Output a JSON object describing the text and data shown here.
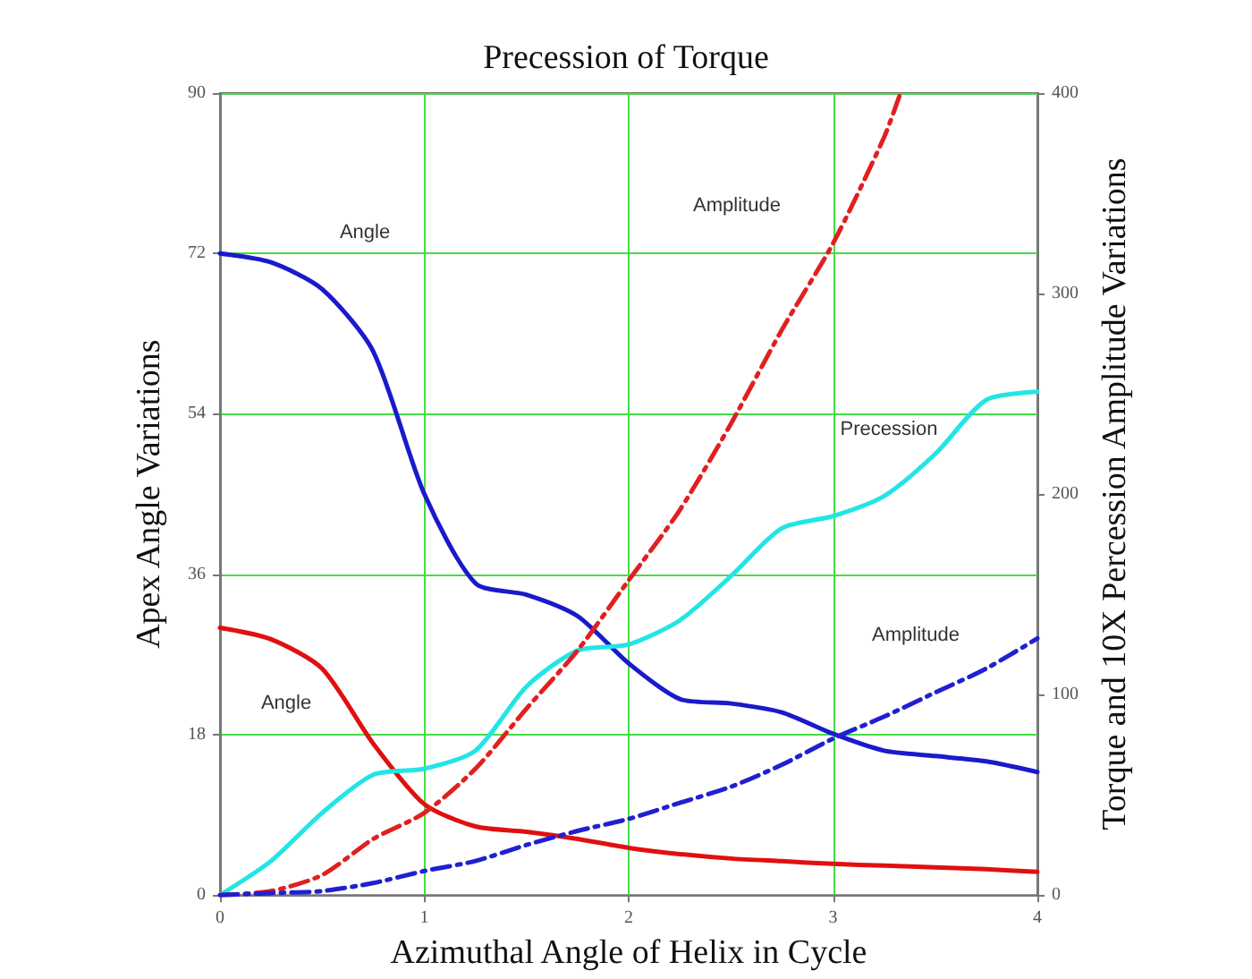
{
  "chart_data": {
    "type": "line",
    "title": "Precession of Torque",
    "xlabel": "Azimuthal Angle of Helix in Cycle",
    "ylabel": "Apex Angle Variations",
    "y2label": "Torque and 10X Percession Amplitude Variations",
    "xlim": [
      0,
      4
    ],
    "xticks": [
      0,
      1,
      2,
      3,
      4
    ],
    "ylim": [
      0,
      90
    ],
    "yticks": [
      0,
      18,
      36,
      54,
      72,
      90
    ],
    "y2lim": [
      0,
      400
    ],
    "y2ticks": [
      0,
      100,
      200,
      300,
      400
    ],
    "grid": true,
    "marker": "none",
    "x": [
      0,
      0.25,
      0.5,
      0.75,
      1,
      1.25,
      1.5,
      1.75,
      2,
      2.25,
      2.5,
      2.75,
      3,
      3.25,
      3.5,
      3.75,
      4
    ],
    "series": [
      {
        "color": "#1a1acc",
        "line_style": "solid",
        "values": [
          72,
          71,
          68,
          61,
          45,
          35,
          33.7,
          31.3,
          26,
          22,
          21.5,
          20.5,
          18.1,
          16.2,
          15.6,
          15,
          13.8
        ]
      },
      {
        "color": "#e01010",
        "line_style": "solid",
        "values": [
          30,
          28.7,
          25.4,
          17,
          10.2,
          7.7,
          7.1,
          6.3,
          5.3,
          4.6,
          4.1,
          3.8,
          3.5,
          3.3,
          3.1,
          2.9,
          2.6
        ]
      },
      {
        "color": "#22e5e5",
        "line_style": "solid",
        "axis": "y2",
        "values": [
          0,
          17,
          41,
          60,
          63,
          72,
          104,
          122,
          125,
          137,
          159,
          183,
          189,
          199,
          220,
          247,
          251
        ]
      },
      {
        "color": "#e02020",
        "line_style": "dashed",
        "axis": "y2",
        "x": [
          0,
          0.25,
          0.5,
          0.75,
          1,
          1.25,
          1.5,
          1.75,
          2,
          2.25,
          2.5,
          2.75,
          3,
          3.25,
          3.33
        ],
        "values": [
          0,
          2,
          10,
          28,
          41,
          63,
          93,
          122,
          157,
          192,
          235,
          282,
          325,
          378,
          400
        ]
      },
      {
        "color": "#2020d0",
        "line_style": "dashed",
        "axis": "y2",
        "values": [
          0,
          1,
          2,
          6,
          12,
          17,
          25,
          32,
          38,
          46,
          54,
          65,
          78,
          89,
          101,
          113,
          128
        ]
      }
    ],
    "annotations": [
      "Angle",
      "Amplitude",
      "Precession",
      "Amplitude",
      "Angle"
    ]
  }
}
